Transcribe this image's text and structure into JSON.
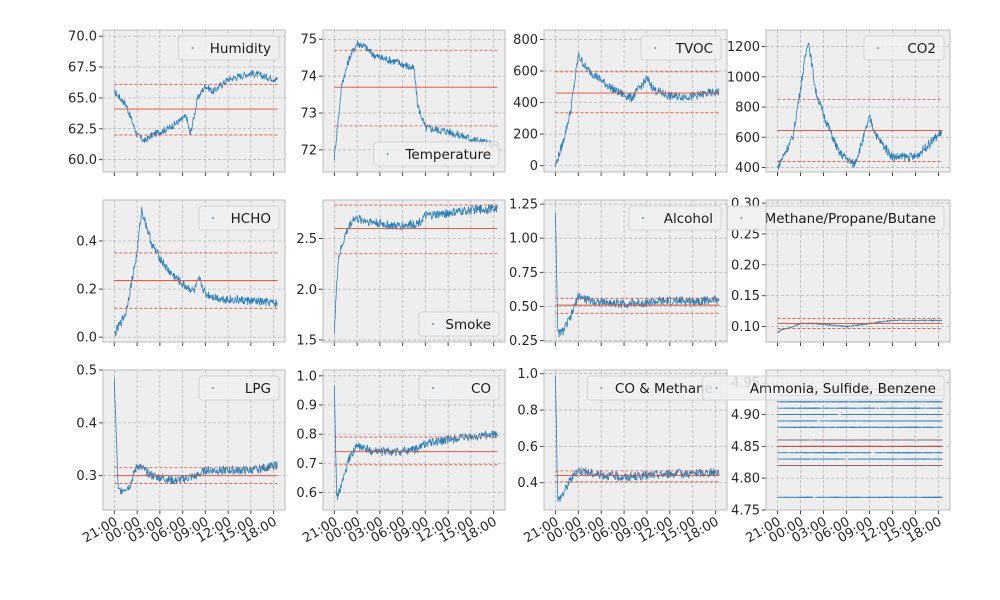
{
  "colors": {
    "line": "#2d7fb8",
    "ref": "#e24a33",
    "panel_bg": "#eeeeee",
    "grid": "#b0b0b0",
    "legend_bg": "#f0f0f0",
    "legend_border": "#cccccc"
  },
  "x_tick_labels": [
    "21:00",
    "00:00",
    "03:00",
    "06:00",
    "09:00",
    "12:00",
    "15:00",
    "18:00"
  ],
  "chart_data": [
    {
      "type": "line",
      "legend": "Humidity",
      "legend_pos": "top-right",
      "x": [
        0,
        1.5,
        3,
        4,
        5,
        7,
        9.5,
        10,
        11,
        12,
        13,
        15,
        18,
        21.5
      ],
      "y": [
        65.5,
        64.5,
        62.0,
        61.5,
        62.0,
        62.5,
        63.5,
        62.0,
        65.0,
        66.0,
        65.5,
        66.5,
        67.0,
        66.5
      ],
      "band": [
        62.0,
        70.2
      ],
      "ylim": [
        59,
        70.5
      ],
      "yticks": [
        "60.0",
        "62.5",
        "65.0",
        "67.5",
        "70.0"
      ],
      "yticks_values": [
        60,
        62.5,
        65,
        67.5,
        70
      ],
      "ref": {
        "mean": 64.1,
        "upper": 66.1,
        "lower": 62.0
      }
    },
    {
      "type": "line",
      "legend": "Temperature",
      "legend_pos": "bottom-right",
      "x": [
        0,
        1,
        2,
        3,
        4,
        5,
        6,
        8,
        10.5,
        11,
        12,
        15,
        18,
        21.5
      ],
      "y": [
        71.8,
        73.8,
        74.5,
        74.9,
        74.8,
        74.6,
        74.5,
        74.4,
        74.2,
        73.2,
        72.6,
        72.5,
        72.3,
        72.1
      ],
      "band": [
        71.9,
        75.1
      ],
      "ylim": [
        71.4,
        75.25
      ],
      "yticks": [
        "72",
        "73",
        "74",
        "75"
      ],
      "yticks_values": [
        72,
        73,
        74,
        75
      ],
      "ref": {
        "mean": 73.7,
        "upper": 74.7,
        "lower": 72.65
      }
    },
    {
      "type": "line",
      "legend": "TVOC",
      "legend_pos": "top-right",
      "x": [
        0,
        1,
        2,
        3,
        4,
        6,
        8,
        10,
        12,
        13,
        15,
        18,
        21.5
      ],
      "y": [
        0,
        150,
        350,
        700,
        620,
        540,
        470,
        430,
        550,
        480,
        440,
        440,
        470
      ],
      "band": [
        0,
        800
      ],
      "ylim": [
        -40,
        860
      ],
      "yticks": [
        "0",
        "200",
        "400",
        "600",
        "800"
      ],
      "yticks_values": [
        0,
        200,
        400,
        600,
        800
      ],
      "ref": {
        "mean": 460,
        "upper": 595,
        "lower": 335
      }
    },
    {
      "type": "line",
      "legend": "CO2",
      "legend_pos": "top-right",
      "x": [
        0,
        2,
        4,
        5,
        6,
        8,
        10,
        11,
        12,
        13,
        15,
        18,
        21.5
      ],
      "y": [
        400,
        600,
        1250,
        900,
        750,
        500,
        420,
        560,
        730,
        600,
        470,
        470,
        640
      ],
      "band": [
        400,
        1270
      ],
      "ylim": [
        370,
        1310
      ],
      "yticks": [
        "400",
        "600",
        "800",
        "1000",
        "1200"
      ],
      "yticks_values": [
        400,
        600,
        800,
        1000,
        1200
      ],
      "ref": {
        "mean": 645,
        "upper": 850,
        "lower": 440
      }
    },
    {
      "type": "line",
      "legend": "HCHO",
      "legend_pos": "top-right",
      "x": [
        0,
        1.5,
        3,
        3.6,
        5,
        7,
        9,
        10.5,
        11.2,
        12,
        14,
        18,
        21.5
      ],
      "y": [
        0.01,
        0.1,
        0.35,
        0.53,
        0.38,
        0.28,
        0.22,
        0.19,
        0.24,
        0.18,
        0.16,
        0.15,
        0.14
      ],
      "band": [
        0.01,
        0.55
      ],
      "ylim": [
        -0.02,
        0.57
      ],
      "yticks": [
        "0.0",
        "0.2",
        "0.4"
      ],
      "yticks_values": [
        0,
        0.2,
        0.4
      ],
      "ref": {
        "mean": 0.235,
        "upper": 0.35,
        "lower": 0.12
      }
    },
    {
      "type": "line",
      "legend": "Smoke",
      "legend_pos": "bottom-right",
      "x": [
        0,
        0.5,
        1.5,
        2.5,
        4,
        6,
        8,
        11,
        12,
        15,
        18,
        21.5
      ],
      "y": [
        1.6,
        2.3,
        2.55,
        2.7,
        2.68,
        2.65,
        2.62,
        2.65,
        2.72,
        2.75,
        2.78,
        2.8
      ],
      "band": [
        1.55,
        2.85
      ],
      "ylim": [
        1.48,
        2.88
      ],
      "yticks": [
        "1.5",
        "2.0",
        "2.5"
      ],
      "yticks_values": [
        1.5,
        2.0,
        2.5
      ],
      "ref": {
        "mean": 2.6,
        "upper": 2.83,
        "lower": 2.35
      }
    },
    {
      "type": "line",
      "legend": "Alcohol",
      "legend_pos": "top-right",
      "x": [
        0,
        0.3,
        1,
        2,
        3,
        4,
        6,
        9,
        12,
        15,
        18,
        21.5
      ],
      "y": [
        1.2,
        0.3,
        0.32,
        0.42,
        0.58,
        0.55,
        0.53,
        0.52,
        0.53,
        0.54,
        0.54,
        0.55
      ],
      "band": [
        0.28,
        1.25
      ],
      "ylim": [
        0.24,
        1.28
      ],
      "yticks": [
        "0.25",
        "0.50",
        "0.75",
        "1.00",
        "1.25"
      ],
      "yticks_values": [
        0.25,
        0.5,
        0.75,
        1.0,
        1.25
      ],
      "ref": {
        "mean": 0.51,
        "upper": 0.56,
        "lower": 0.45
      }
    },
    {
      "type": "line",
      "legend": "Methane/Propane/Butane",
      "legend_pos": "top-right",
      "x": [
        0,
        0.5,
        2,
        3,
        5,
        9,
        12,
        15,
        18,
        21.5
      ],
      "y": [
        0.09,
        0.095,
        0.1,
        0.105,
        0.105,
        0.1,
        0.105,
        0.11,
        0.11,
        0.11
      ],
      "band": [
        0.09,
        0.12
      ],
      "ylim": [
        0.075,
        0.305
      ],
      "yticks": [
        "0.10",
        "0.15",
        "0.20",
        "0.25",
        "0.30"
      ],
      "yticks_values": [
        0.1,
        0.15,
        0.2,
        0.25,
        0.3
      ],
      "ref": {
        "mean": 0.105,
        "upper": 0.113,
        "lower": 0.097
      }
    },
    {
      "type": "line",
      "legend": "LPG",
      "legend_pos": "top-right",
      "x": [
        0,
        0.5,
        2,
        3,
        5,
        8,
        11,
        12,
        15,
        18,
        21.5
      ],
      "y": [
        0.48,
        0.27,
        0.28,
        0.32,
        0.3,
        0.29,
        0.3,
        0.31,
        0.31,
        0.31,
        0.32
      ],
      "band": [
        0.25,
        0.49
      ],
      "ylim": [
        0.235,
        0.5
      ],
      "yticks": [
        "0.3",
        "0.4",
        "0.5"
      ],
      "yticks_values": [
        0.3,
        0.4,
        0.5
      ],
      "ref": {
        "mean": 0.3,
        "upper": 0.315,
        "lower": 0.285
      }
    },
    {
      "type": "line",
      "legend": "CO",
      "legend_pos": "top-right",
      "x": [
        0,
        0.3,
        1,
        2,
        3,
        5,
        9,
        11,
        12,
        15,
        18,
        21.5
      ],
      "y": [
        0.98,
        0.58,
        0.63,
        0.72,
        0.76,
        0.74,
        0.74,
        0.75,
        0.77,
        0.78,
        0.79,
        0.8
      ],
      "band": [
        0.57,
        1.0
      ],
      "ylim": [
        0.54,
        1.02
      ],
      "yticks": [
        "0.6",
        "0.7",
        "0.8",
        "0.9",
        "1.0"
      ],
      "yticks_values": [
        0.6,
        0.7,
        0.8,
        0.9,
        1.0
      ],
      "ref": {
        "mean": 0.74,
        "upper": 0.79,
        "lower": 0.695
      }
    },
    {
      "type": "line",
      "legend": "CO & Methane",
      "legend_pos": "top-right",
      "x": [
        0,
        0.3,
        1,
        2,
        3,
        5,
        9,
        12,
        15,
        18,
        21.5
      ],
      "y": [
        1.0,
        0.3,
        0.34,
        0.42,
        0.47,
        0.45,
        0.43,
        0.44,
        0.45,
        0.45,
        0.46
      ],
      "band": [
        0.28,
        1.0
      ],
      "ylim": [
        0.25,
        1.02
      ],
      "yticks": [
        "0.4",
        "0.6",
        "0.8",
        "1.0"
      ],
      "yticks_values": [
        0.4,
        0.6,
        0.8,
        1.0
      ],
      "ref": {
        "mean": 0.44,
        "upper": 0.465,
        "lower": 0.405
      }
    },
    {
      "type": "line",
      "legend": "Ammonia, Sulfide, Benzene",
      "legend_pos": "top-right",
      "x": [
        0,
        21.5
      ],
      "y": [
        4.85,
        4.85
      ],
      "levels": [
        4.77,
        4.82,
        4.83,
        4.84,
        4.85,
        4.86,
        4.88,
        4.89,
        4.9,
        4.91,
        4.92,
        4.93,
        4.94
      ],
      "band": [
        4.77,
        4.95
      ],
      "ylim": [
        4.75,
        4.97
      ],
      "yticks": [
        "4.75",
        "4.80",
        "4.85",
        "4.90",
        "4.95"
      ],
      "yticks_values": [
        4.75,
        4.8,
        4.85,
        4.9,
        4.95
      ],
      "ref": {
        "mean": 4.85,
        "upper": 4.86,
        "lower": 4.82
      }
    }
  ]
}
